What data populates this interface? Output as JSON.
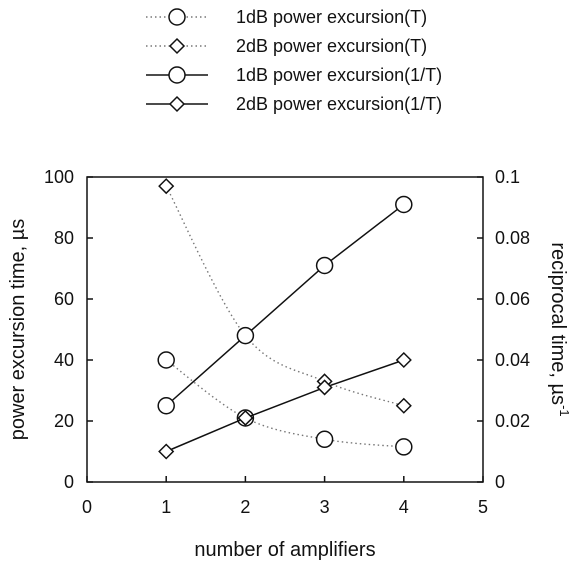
{
  "chart_data": {
    "type": "line",
    "title": "",
    "xlabel": "number of amplifiers",
    "ylabel_left": "power excursion time, µs",
    "ylabel_right_base": "reciprocal time, µs",
    "ylabel_right_sup": "-1",
    "xlim": [
      0,
      5
    ],
    "ylim_left": [
      0,
      100
    ],
    "ylim_right": [
      0,
      0.1
    ],
    "x_ticks": [
      "0",
      "1",
      "2",
      "3",
      "4",
      "5"
    ],
    "y_left_ticks": [
      "0",
      "20",
      "40",
      "60",
      "80",
      "100"
    ],
    "y_right_ticks": [
      "0",
      "0.02",
      "0.04",
      "0.06",
      "0.08",
      "0.1"
    ],
    "grid": false,
    "legend_position": "top",
    "series": [
      {
        "name": "1dB power excursion(T)",
        "axis": "left",
        "marker": "circle",
        "line": "dotted",
        "x": [
          1,
          2,
          3,
          4
        ],
        "y": [
          40,
          21,
          14,
          11.5
        ]
      },
      {
        "name": "2dB power excursion(T)",
        "axis": "left",
        "marker": "diamond",
        "line": "dotted",
        "x": [
          1,
          2,
          3,
          4
        ],
        "y": [
          97,
          48,
          33,
          25
        ]
      },
      {
        "name": "1dB power excursion(1/T)",
        "axis": "right",
        "marker": "circle",
        "line": "solid",
        "x": [
          1,
          2,
          3,
          4
        ],
        "y": [
          0.025,
          0.048,
          0.071,
          0.091
        ]
      },
      {
        "name": "2dB power excursion(1/T)",
        "axis": "right",
        "marker": "diamond",
        "line": "solid",
        "x": [
          1,
          2,
          3,
          4
        ],
        "y": [
          0.01,
          0.021,
          0.031,
          0.04
        ]
      }
    ]
  },
  "colors": {
    "ink": "#111111",
    "dotted_line": "#777777",
    "background": "#ffffff"
  }
}
